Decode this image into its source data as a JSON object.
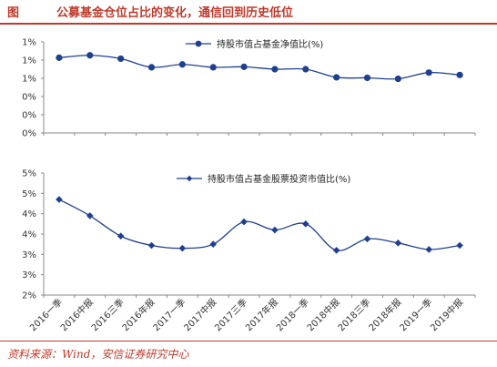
{
  "header": {
    "label": "图",
    "title": "公募基金仓位占比的变化，通信回到历史低位"
  },
  "footer": {
    "source": "资料来源：Wind，安信证券研究中心"
  },
  "colors": {
    "series": "#1f3f8f",
    "accent": "#c0392b"
  },
  "chart_data": [
    {
      "type": "line",
      "series": [
        {
          "name": "持股市值占基金净值比(%)",
          "values": [
            1.57,
            1.62,
            1.55,
            1.37,
            1.43,
            1.37,
            1.38,
            1.33,
            1.33,
            1.16,
            1.15,
            1.13,
            1.26,
            1.21
          ]
        }
      ],
      "ylim": [
        0,
        1.9
      ],
      "yticks": [
        0,
        0.38,
        0.76,
        1.14,
        1.52,
        1.9
      ],
      "ytick_labels": [
        "0%",
        "0%",
        "0%",
        "1%",
        "1%",
        "1%"
      ],
      "grid": false,
      "legend": "top-right"
    },
    {
      "type": "line",
      "categories": [
        "2016一季",
        "2016中报",
        "2016三季",
        "2016年报",
        "2017一季",
        "2017中报",
        "2017三季",
        "2017年报",
        "2018一季",
        "2018中报",
        "2018三季",
        "2018年报",
        "2019一季",
        "2019中报"
      ],
      "series": [
        {
          "name": "持股市值占基金股票投资市值比(%)",
          "values": [
            4.35,
            3.95,
            3.45,
            3.22,
            3.15,
            3.25,
            3.8,
            3.6,
            3.75,
            3.1,
            3.38,
            3.28,
            3.12,
            3.22
          ]
        }
      ],
      "ylim": [
        2,
        5
      ],
      "yticks": [
        2,
        2.5,
        3,
        3.5,
        4,
        4.5,
        5
      ],
      "ytick_labels": [
        "2%",
        "3%",
        "3%",
        "4%",
        "4%",
        "5%",
        "5%"
      ],
      "grid": false,
      "legend": "top-center"
    }
  ]
}
